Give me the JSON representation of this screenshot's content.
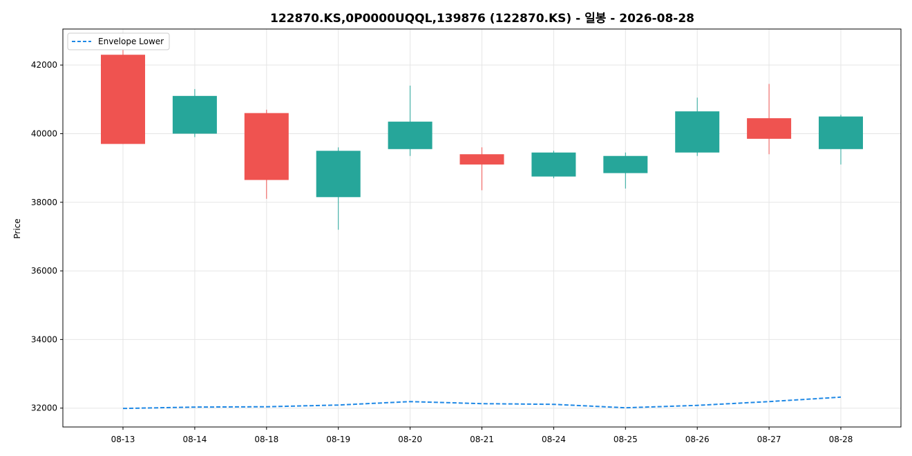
{
  "chart_data": {
    "type": "candlestick",
    "title": "122870.KS,0P0000UQQL,139876 (122870.KS) - 일봉 - 2026-08-28",
    "xlabel": "",
    "ylabel": "Price",
    "categories": [
      "08-13",
      "08-14",
      "08-18",
      "08-19",
      "08-20",
      "08-21",
      "08-24",
      "08-25",
      "08-26",
      "08-27",
      "08-28"
    ],
    "yticks": [
      32000,
      34000,
      36000,
      38000,
      40000,
      42000
    ],
    "ylim": [
      31450,
      43050
    ],
    "grid": true,
    "legend_position": "top-left",
    "colors": {
      "up": "#26a69a",
      "down": "#ef5350",
      "envelope": "#1e88e5"
    },
    "candles": [
      {
        "date": "08-13",
        "open": 42300,
        "high": 42450,
        "low": 39700,
        "close": 39700
      },
      {
        "date": "08-14",
        "open": 40000,
        "high": 41300,
        "low": 39900,
        "close": 41100
      },
      {
        "date": "08-18",
        "open": 40600,
        "high": 40700,
        "low": 38100,
        "close": 38650
      },
      {
        "date": "08-19",
        "open": 38150,
        "high": 39600,
        "low": 37200,
        "close": 39500
      },
      {
        "date": "08-20",
        "open": 39550,
        "high": 41400,
        "low": 39350,
        "close": 40350
      },
      {
        "date": "08-21",
        "open": 39400,
        "high": 39600,
        "low": 38350,
        "close": 39100
      },
      {
        "date": "08-24",
        "open": 38750,
        "high": 39500,
        "low": 38700,
        "close": 39450
      },
      {
        "date": "08-25",
        "open": 38850,
        "high": 39450,
        "low": 38400,
        "close": 39350
      },
      {
        "date": "08-26",
        "open": 39450,
        "high": 41050,
        "low": 39350,
        "close": 40650
      },
      {
        "date": "08-27",
        "open": 40450,
        "high": 41450,
        "low": 39400,
        "close": 39850
      },
      {
        "date": "08-28",
        "open": 39550,
        "high": 40550,
        "low": 39100,
        "close": 40500
      }
    ],
    "series": [
      {
        "name": "Envelope Lower",
        "style": "dashed",
        "values": [
          31990,
          32030,
          32040,
          32090,
          32190,
          32130,
          32110,
          32010,
          32080,
          32190,
          32320
        ]
      }
    ]
  }
}
